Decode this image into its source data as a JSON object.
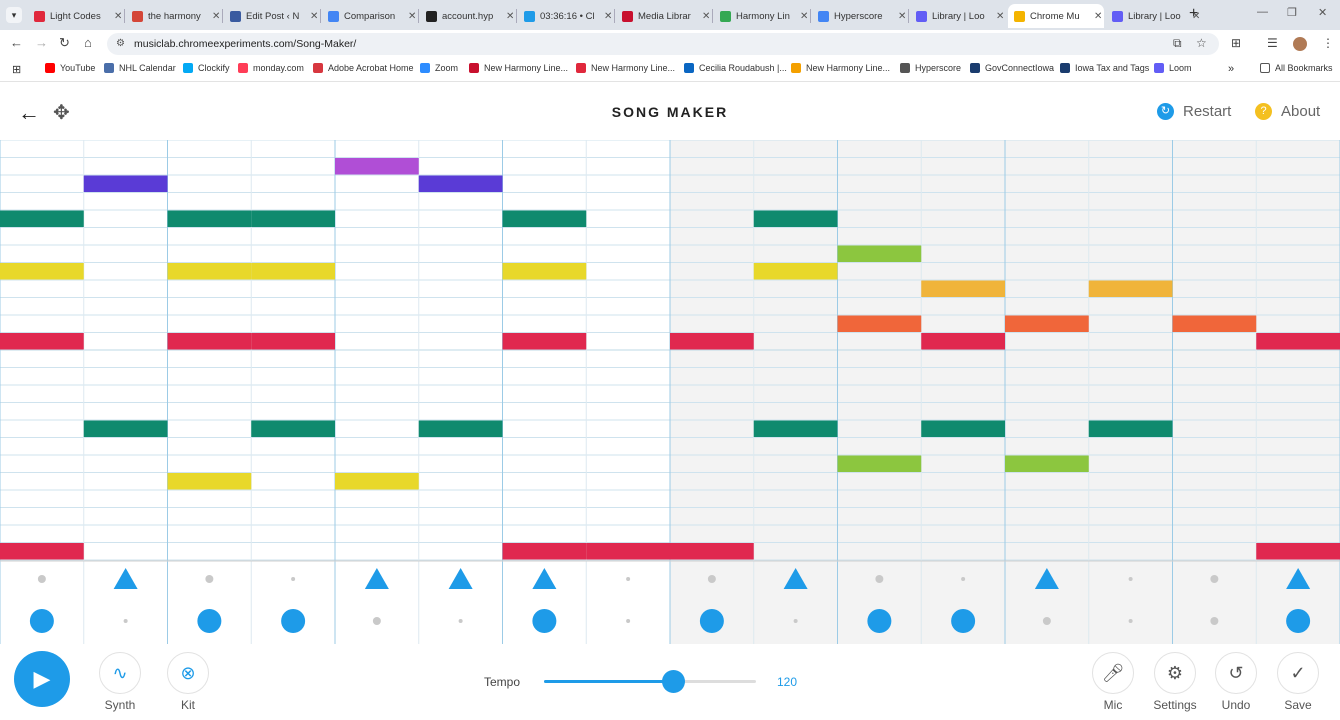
{
  "browser": {
    "tabs": [
      {
        "title": "Light Codes",
        "color": "#e0283c"
      },
      {
        "title": "the harmony",
        "color": "#d44638"
      },
      {
        "title": "Edit Post ‹ N",
        "color": "#3a5ba0"
      },
      {
        "title": "Comparison",
        "color": "#4285f4"
      },
      {
        "title": "account.hyp",
        "color": "#222222"
      },
      {
        "title": "03:36:16 • Cl",
        "color": "#1e9be8"
      },
      {
        "title": "Media Librar",
        "color": "#c8102e"
      },
      {
        "title": "Harmony Lin",
        "color": "#34a853"
      },
      {
        "title": "Hyperscore",
        "color": "#4285f4"
      },
      {
        "title": "Library | Loo",
        "color": "#625df5"
      },
      {
        "title": "Chrome Mu",
        "color": "#f4b400"
      },
      {
        "title": "Library | Loo",
        "color": "#625df5"
      }
    ],
    "active_tab": 10,
    "url": "musiclab.chromeexperiments.com/Song-Maker/",
    "bookmarks": [
      {
        "label": "YouTube",
        "color": "#ff0000"
      },
      {
        "label": "NHL Calendar",
        "color": "#4a6ea9"
      },
      {
        "label": "Clockify",
        "color": "#03a9f4"
      },
      {
        "label": "monday.com",
        "color": "#ff3d57"
      },
      {
        "label": "Adobe Acrobat Home",
        "color": "#d7373f"
      },
      {
        "label": "Zoom",
        "color": "#2d8cff"
      },
      {
        "label": "New Harmony Line...",
        "color": "#c8102e"
      },
      {
        "label": "New Harmony Line...",
        "color": "#e0283c"
      },
      {
        "label": "Cecilia Roudabush |...",
        "color": "#0a66c2"
      },
      {
        "label": "New Harmony Line...",
        "color": "#f4a000"
      },
      {
        "label": "Hyperscore",
        "color": "#555555"
      },
      {
        "label": "GovConnectIowa",
        "color": "#1a3c6e"
      },
      {
        "label": "Iowa Tax and Tags",
        "color": "#1a3c6e"
      },
      {
        "label": "Loom",
        "color": "#625df5"
      }
    ],
    "all_bookmarks": "All Bookmarks"
  },
  "app": {
    "title": "SONG MAKER",
    "restart": "Restart",
    "about": "About",
    "about_icon": "?"
  },
  "grid": {
    "columns": 16,
    "rows": 24,
    "notes": [
      {
        "col": 0,
        "row": 4,
        "color": "#0f8a6e"
      },
      {
        "col": 0,
        "row": 7,
        "color": "#e8d82a"
      },
      {
        "col": 0,
        "row": 11,
        "color": "#e0284f"
      },
      {
        "col": 0,
        "row": 23,
        "color": "#e0284f"
      },
      {
        "col": 1,
        "row": 2,
        "color": "#5a3bd6"
      },
      {
        "col": 1,
        "row": 16,
        "color": "#0f8a6e"
      },
      {
        "col": 2,
        "row": 4,
        "color": "#0f8a6e"
      },
      {
        "col": 2,
        "row": 7,
        "color": "#e8d82a"
      },
      {
        "col": 2,
        "row": 11,
        "color": "#e0284f"
      },
      {
        "col": 2,
        "row": 19,
        "color": "#e8d82a"
      },
      {
        "col": 3,
        "row": 4,
        "color": "#0f8a6e"
      },
      {
        "col": 3,
        "row": 7,
        "color": "#e8d82a"
      },
      {
        "col": 3,
        "row": 11,
        "color": "#e0284f"
      },
      {
        "col": 3,
        "row": 16,
        "color": "#0f8a6e"
      },
      {
        "col": 4,
        "row": 1,
        "color": "#b04ed6"
      },
      {
        "col": 4,
        "row": 19,
        "color": "#e8d82a"
      },
      {
        "col": 5,
        "row": 2,
        "color": "#5a3bd6"
      },
      {
        "col": 5,
        "row": 16,
        "color": "#0f8a6e"
      },
      {
        "col": 6,
        "row": 4,
        "color": "#0f8a6e"
      },
      {
        "col": 6,
        "row": 7,
        "color": "#e8d82a"
      },
      {
        "col": 6,
        "row": 11,
        "color": "#e0284f"
      },
      {
        "col": 6,
        "row": 23,
        "color": "#e0284f"
      },
      {
        "col": 7,
        "row": 23,
        "color": "#e0284f"
      },
      {
        "col": 8,
        "row": 11,
        "color": "#e0284f"
      },
      {
        "col": 8,
        "row": 23,
        "color": "#e0284f"
      },
      {
        "col": 9,
        "row": 4,
        "color": "#0f8a6e"
      },
      {
        "col": 9,
        "row": 7,
        "color": "#e8d82a"
      },
      {
        "col": 9,
        "row": 16,
        "color": "#0f8a6e"
      },
      {
        "col": 10,
        "row": 6,
        "color": "#8cc63f"
      },
      {
        "col": 10,
        "row": 10,
        "color": "#f0663a"
      },
      {
        "col": 10,
        "row": 18,
        "color": "#8cc63f"
      },
      {
        "col": 11,
        "row": 8,
        "color": "#f0b43a"
      },
      {
        "col": 11,
        "row": 11,
        "color": "#e0284f"
      },
      {
        "col": 11,
        "row": 16,
        "color": "#0f8a6e"
      },
      {
        "col": 12,
        "row": 10,
        "color": "#f0663a"
      },
      {
        "col": 12,
        "row": 18,
        "color": "#8cc63f"
      },
      {
        "col": 13,
        "row": 8,
        "color": "#f0b43a"
      },
      {
        "col": 13,
        "row": 16,
        "color": "#0f8a6e"
      },
      {
        "col": 14,
        "row": 10,
        "color": "#f0663a"
      },
      {
        "col": 15,
        "row": 11,
        "color": "#e0284f"
      },
      {
        "col": 15,
        "row": 23,
        "color": "#e0284f"
      }
    ],
    "percussion_top": [
      "dot",
      "triangle",
      "dot",
      "small",
      "triangle",
      "triangle",
      "triangle",
      "small",
      "dot",
      "triangle",
      "dot",
      "small",
      "triangle",
      "small",
      "dot",
      "triangle"
    ],
    "percussion_bottom": [
      "circle",
      "small",
      "circle",
      "circle",
      "dot",
      "small",
      "circle",
      "small",
      "circle",
      "small",
      "circle",
      "circle",
      "dot",
      "small",
      "dot",
      "circle"
    ]
  },
  "controls": {
    "synth_label": "Synth",
    "kit_label": "Kit",
    "tempo_label": "Tempo",
    "tempo_value": "120",
    "tempo_fraction": 0.61,
    "mic_label": "Mic",
    "settings_label": "Settings",
    "undo_label": "Undo",
    "save_label": "Save"
  },
  "colors": {
    "accent": "#1e9be8",
    "grid_line": "#cfe3ee",
    "shaded_bg": "#f3f3f3"
  }
}
